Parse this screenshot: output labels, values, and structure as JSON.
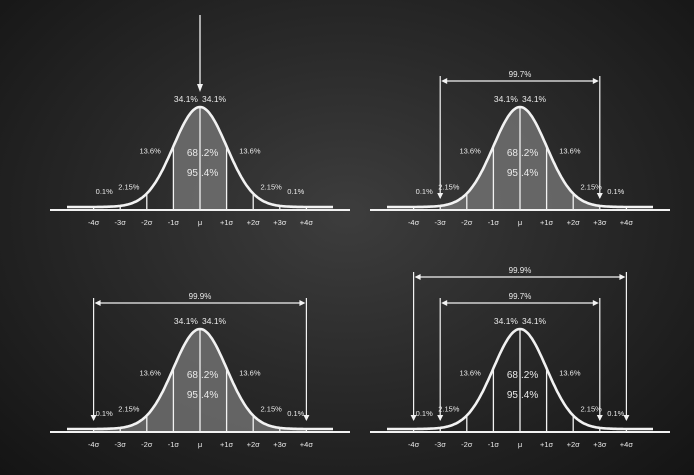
{
  "colors": {
    "chalk": "#f2f2f2",
    "shade": "#7a7a7a",
    "board": "#2e2e2e"
  },
  "ticks": [
    "-4σ",
    "-3σ",
    "-2σ",
    "-1σ",
    "μ",
    "+1σ",
    "+2σ",
    "+3σ",
    "+4σ"
  ],
  "labels": {
    "center_left": "34.1%",
    "center_right": "34.1%",
    "one_sigma": "13.6%",
    "two_sigma": "2.15%",
    "three_sigma": "0.1%",
    "inner_1": "68",
    "inner_2": ".2%",
    "inner_3": "95",
    "inner_4": ".4%"
  },
  "panels": [
    {
      "id": "top-left",
      "shaded_sigma": 1,
      "mean_arrow": true,
      "brackets": []
    },
    {
      "id": "top-right",
      "shaded_sigma": 3,
      "mean_arrow": false,
      "brackets": [
        {
          "sigma": 3,
          "label": "99.7%"
        }
      ]
    },
    {
      "id": "bottom-left",
      "shaded_sigma": 4,
      "mean_arrow": false,
      "brackets": [
        {
          "sigma": 4,
          "label": "99.9%"
        }
      ]
    },
    {
      "id": "bottom-right",
      "shaded_sigma": 0,
      "mean_arrow": false,
      "brackets": [
        {
          "sigma": 4,
          "label": "99.9%"
        },
        {
          "sigma": 3,
          "label": "99.7%"
        }
      ]
    }
  ]
}
